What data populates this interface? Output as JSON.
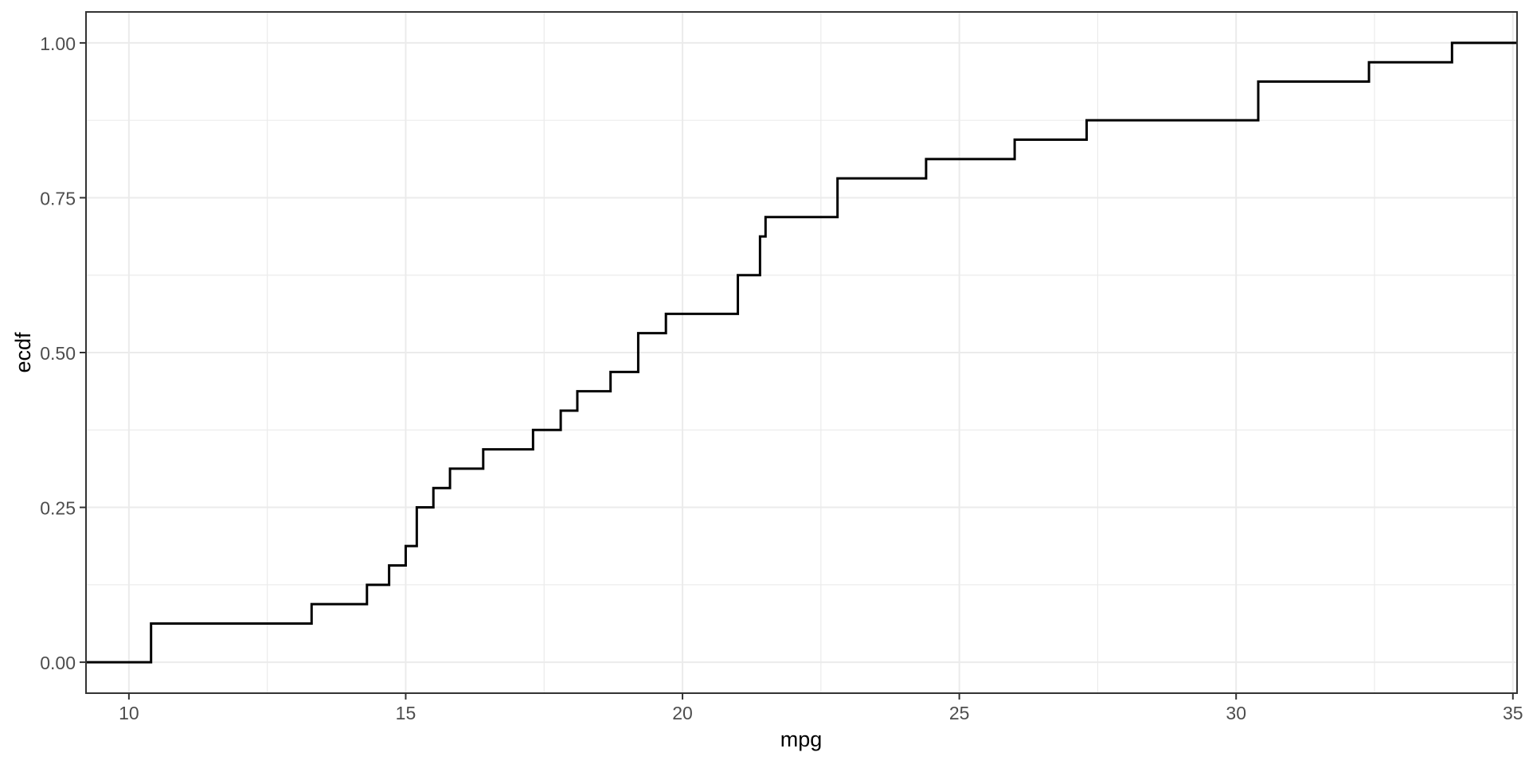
{
  "chart_data": {
    "type": "line",
    "subtype": "ecdf-step",
    "title": "",
    "xlabel": "mpg",
    "ylabel": "ecdf",
    "x_tick_labels": [
      "10",
      "15",
      "20",
      "25",
      "30",
      "35"
    ],
    "x_tick_values": [
      10,
      15,
      20,
      25,
      30,
      35
    ],
    "x_minor_values": [
      12.5,
      17.5,
      22.5,
      27.5,
      32.5
    ],
    "y_tick_labels": [
      "0.00",
      "0.25",
      "0.50",
      "0.75",
      "1.00"
    ],
    "y_tick_values": [
      0,
      0.25,
      0.5,
      0.75,
      1
    ],
    "y_minor_values": [
      0.125,
      0.375,
      0.625,
      0.875
    ],
    "xlim": [
      9.225,
      35.075
    ],
    "ylim": [
      -0.05,
      1.05
    ],
    "grid": true,
    "legend": false,
    "n": 32,
    "sample_values_sorted": [
      10.4,
      10.4,
      13.3,
      14.3,
      14.7,
      15.0,
      15.2,
      15.2,
      15.5,
      15.8,
      16.4,
      17.3,
      17.8,
      18.1,
      18.7,
      19.2,
      19.2,
      19.7,
      21.0,
      21.0,
      21.4,
      21.4,
      21.5,
      22.8,
      22.8,
      24.4,
      26.0,
      27.3,
      30.4,
      30.4,
      32.4,
      33.9
    ],
    "ecdf_steps": [
      {
        "x": 10.4,
        "y": 0.0625
      },
      {
        "x": 13.3,
        "y": 0.09375
      },
      {
        "x": 14.3,
        "y": 0.125
      },
      {
        "x": 14.7,
        "y": 0.15625
      },
      {
        "x": 15.0,
        "y": 0.1875
      },
      {
        "x": 15.2,
        "y": 0.25
      },
      {
        "x": 15.5,
        "y": 0.28125
      },
      {
        "x": 15.8,
        "y": 0.3125
      },
      {
        "x": 16.4,
        "y": 0.34375
      },
      {
        "x": 17.3,
        "y": 0.375
      },
      {
        "x": 17.8,
        "y": 0.40625
      },
      {
        "x": 18.1,
        "y": 0.4375
      },
      {
        "x": 18.7,
        "y": 0.46875
      },
      {
        "x": 19.2,
        "y": 0.53125
      },
      {
        "x": 19.7,
        "y": 0.5625
      },
      {
        "x": 21.0,
        "y": 0.625
      },
      {
        "x": 21.4,
        "y": 0.6875
      },
      {
        "x": 21.5,
        "y": 0.71875
      },
      {
        "x": 22.8,
        "y": 0.78125
      },
      {
        "x": 24.4,
        "y": 0.8125
      },
      {
        "x": 26.0,
        "y": 0.84375
      },
      {
        "x": 27.3,
        "y": 0.875
      },
      {
        "x": 30.4,
        "y": 0.9375
      },
      {
        "x": 32.4,
        "y": 0.96875
      },
      {
        "x": 33.9,
        "y": 1.0
      }
    ],
    "colors": {
      "line": "#000000",
      "panel_border": "#333333",
      "grid_major": "#EBEBEB",
      "grid_minor": "#EBEBEB",
      "tick_mark": "#333333",
      "tick_label": "#4D4D4D",
      "axis_title": "#000000",
      "background": "#FFFFFF"
    }
  }
}
